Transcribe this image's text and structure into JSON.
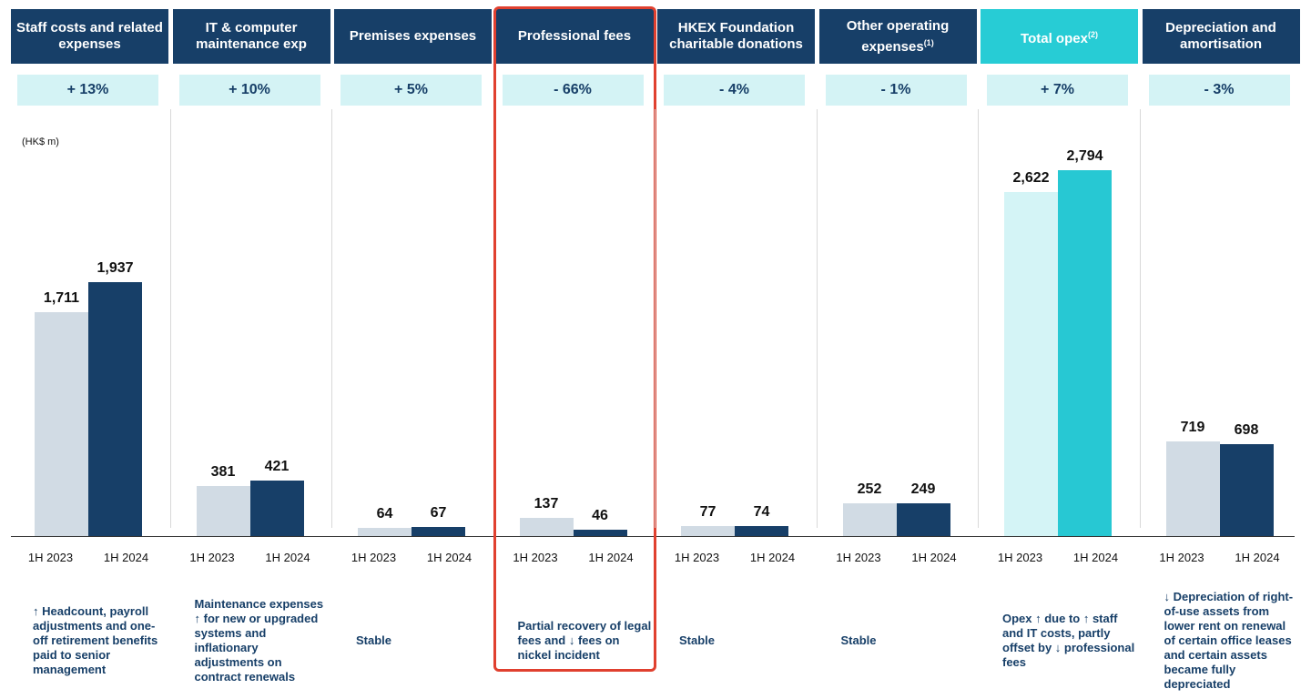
{
  "unit_label": "(HK$ m)",
  "chart_data": [
    {
      "type": "bar",
      "title": "Staff costs and related expenses",
      "change": "+ 13%",
      "categories": [
        "1H 2023",
        "1H 2024"
      ],
      "values": [
        1711,
        1937
      ],
      "value_labels": [
        "1,711",
        "1,937"
      ],
      "colors": [
        "#d1dbe4",
        "#173f68"
      ],
      "header_color": "#173f68",
      "ylim": [
        0,
        3000
      ],
      "note": "↑ Headcount, payroll adjustments and one-off retirement benefits paid to senior management"
    },
    {
      "type": "bar",
      "title": "IT & computer maintenance exp",
      "change": "+ 10%",
      "categories": [
        "1H 2023",
        "1H 2024"
      ],
      "values": [
        381,
        421
      ],
      "colors": [
        "#d1dbe4",
        "#173f68"
      ],
      "header_color": "#173f68",
      "ylim": [
        0,
        3000
      ],
      "note": "Maintenance expenses ↑ for new or upgraded systems and inflationary adjustments on contract renewals"
    },
    {
      "type": "bar",
      "title": "Premises expenses",
      "change": "+ 5%",
      "categories": [
        "1H 2023",
        "1H 2024"
      ],
      "values": [
        64,
        67
      ],
      "colors": [
        "#d1dbe4",
        "#173f68"
      ],
      "header_color": "#173f68",
      "ylim": [
        0,
        3000
      ],
      "note": "Stable"
    },
    {
      "type": "bar",
      "title": "Professional fees",
      "change": "- 66%",
      "categories": [
        "1H 2023",
        "1H 2024"
      ],
      "values": [
        137,
        46
      ],
      "colors": [
        "#d1dbe4",
        "#173f68"
      ],
      "header_color": "#173f68",
      "ylim": [
        0,
        3000
      ],
      "note": "Partial recovery of legal fees and ↓ fees on nickel incident",
      "highlight": true
    },
    {
      "type": "bar",
      "title": "HKEX Foundation charitable donations",
      "change": "- 4%",
      "categories": [
        "1H 2023",
        "1H 2024"
      ],
      "values": [
        77,
        74
      ],
      "colors": [
        "#d1dbe4",
        "#173f68"
      ],
      "header_color": "#173f68",
      "ylim": [
        0,
        3000
      ],
      "note": "Stable"
    },
    {
      "type": "bar",
      "title": "Other operating expenses",
      "title_note": "(1)",
      "change": "- 1%",
      "categories": [
        "1H 2023",
        "1H 2024"
      ],
      "values": [
        252,
        249
      ],
      "colors": [
        "#d1dbe4",
        "#173f68"
      ],
      "header_color": "#173f68",
      "ylim": [
        0,
        3000
      ],
      "note": "Stable"
    },
    {
      "type": "bar",
      "title": "Total opex",
      "title_note": "(2)",
      "change": "+ 7%",
      "categories": [
        "1H 2023",
        "1H 2024"
      ],
      "values": [
        2622,
        2794
      ],
      "value_labels": [
        "2,622",
        "2,794"
      ],
      "colors": [
        "#d4f4f6",
        "#27c8d3"
      ],
      "header_color": "#27ccd5",
      "ylim": [
        0,
        3000
      ],
      "note": "Opex ↑ due to ↑ staff and IT costs, partly offset by ↓ professional fees"
    },
    {
      "type": "bar",
      "title": "Depreciation and amortisation",
      "change": "- 3%",
      "categories": [
        "1H 2023",
        "1H 2024"
      ],
      "values": [
        719,
        698
      ],
      "colors": [
        "#d1dbe4",
        "#173f68"
      ],
      "header_color": "#173f68",
      "ylim": [
        0,
        3000
      ],
      "note": "↓ Depreciation of right-of-use assets from lower rent on renewal of certain office leases and certain assets became fully depreciated"
    }
  ]
}
